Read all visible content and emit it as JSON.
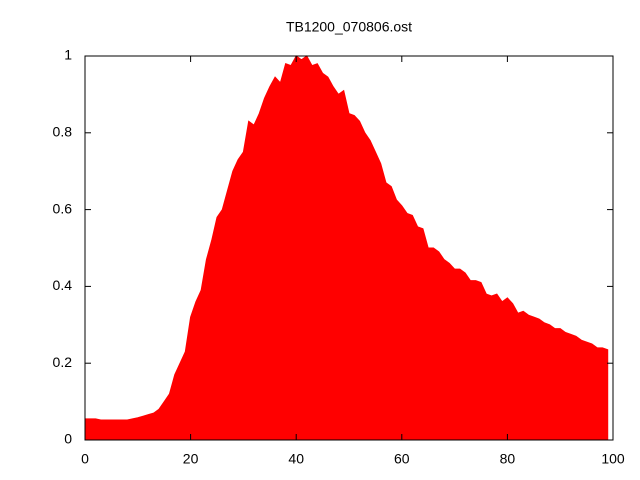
{
  "chart_data": {
    "type": "area",
    "title": "TB1200_070806.ost",
    "color": "#ff0000",
    "x": [
      0,
      1,
      2,
      3,
      4,
      5,
      6,
      7,
      8,
      9,
      10,
      11,
      12,
      13,
      14,
      15,
      16,
      17,
      18,
      19,
      20,
      21,
      22,
      23,
      24,
      25,
      26,
      27,
      28,
      29,
      30,
      31,
      32,
      33,
      34,
      35,
      36,
      37,
      38,
      39,
      40,
      41,
      42,
      43,
      44,
      45,
      46,
      47,
      48,
      49,
      50,
      51,
      52,
      53,
      54,
      55,
      56,
      57,
      58,
      59,
      60,
      61,
      62,
      63,
      64,
      65,
      66,
      67,
      68,
      69,
      70,
      71,
      72,
      73,
      74,
      75,
      76,
      77,
      78,
      79,
      80,
      81,
      82,
      83,
      84,
      85,
      86,
      87,
      88,
      89,
      90,
      91,
      92,
      93,
      94,
      95,
      96,
      97,
      98,
      99
    ],
    "values": [
      0.055,
      0.055,
      0.055,
      0.052,
      0.052,
      0.052,
      0.052,
      0.052,
      0.052,
      0.055,
      0.058,
      0.062,
      0.066,
      0.07,
      0.08,
      0.1,
      0.12,
      0.17,
      0.2,
      0.23,
      0.32,
      0.36,
      0.39,
      0.47,
      0.52,
      0.58,
      0.6,
      0.65,
      0.7,
      0.73,
      0.75,
      0.83,
      0.82,
      0.85,
      0.89,
      0.92,
      0.945,
      0.93,
      0.98,
      0.975,
      1.0,
      0.99,
      1.0,
      0.975,
      0.98,
      0.955,
      0.945,
      0.92,
      0.9,
      0.91,
      0.85,
      0.845,
      0.83,
      0.8,
      0.78,
      0.75,
      0.72,
      0.67,
      0.66,
      0.625,
      0.61,
      0.59,
      0.585,
      0.555,
      0.55,
      0.5,
      0.5,
      0.49,
      0.47,
      0.46,
      0.445,
      0.445,
      0.435,
      0.415,
      0.415,
      0.41,
      0.38,
      0.375,
      0.38,
      0.36,
      0.37,
      0.355,
      0.33,
      0.335,
      0.325,
      0.32,
      0.315,
      0.305,
      0.3,
      0.29,
      0.29,
      0.28,
      0.275,
      0.27,
      0.26,
      0.255,
      0.25,
      0.24,
      0.24,
      0.235
    ],
    "xlim": [
      0,
      100
    ],
    "xticks": [
      0,
      20,
      40,
      60,
      80,
      100
    ],
    "ylim": [
      0,
      1
    ],
    "yticks": [
      0,
      0.2,
      0.4,
      0.6,
      0.8,
      1
    ]
  }
}
